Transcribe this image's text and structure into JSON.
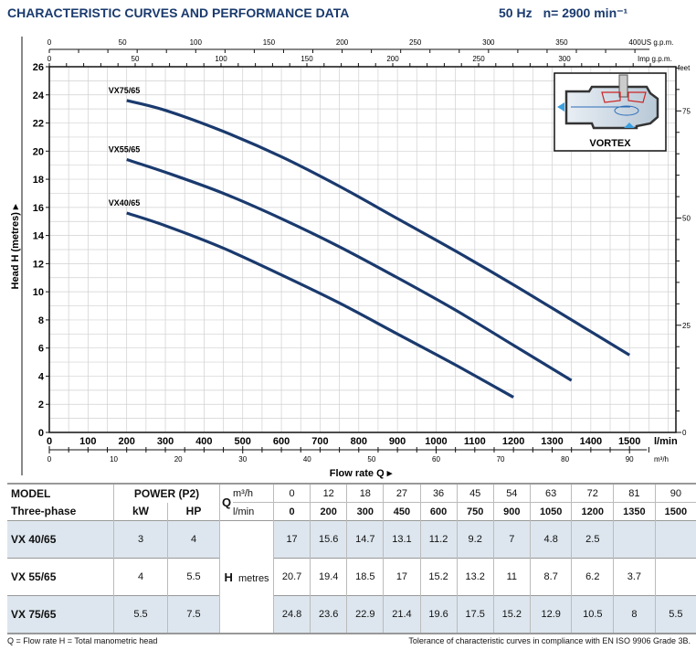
{
  "header": {
    "title": "CHARACTERISTIC CURVES AND PERFORMANCE DATA",
    "frequency": "50 Hz",
    "speed": "n= 2900 min⁻¹"
  },
  "vortex_label": "VORTEX",
  "chart_data": {
    "type": "line",
    "xlabel": "Flow rate Q",
    "ylabel": "Head H (metres)",
    "x_unit": "l/min",
    "xlim": [
      0,
      1620
    ],
    "ylim": [
      0,
      26
    ],
    "x_ticks": [
      0,
      100,
      200,
      300,
      400,
      500,
      600,
      700,
      800,
      900,
      1000,
      1100,
      1200,
      1300,
      1400,
      1500
    ],
    "y_ticks": [
      0,
      2,
      4,
      6,
      8,
      10,
      12,
      14,
      16,
      18,
      20,
      22,
      24,
      26
    ],
    "secondary_axes": {
      "us_gpm": {
        "label": "US g.p.m.",
        "ticks": [
          0,
          50,
          100,
          150,
          200,
          250,
          300,
          350,
          400
        ]
      },
      "imp_gpm": {
        "label": "Imp g.p.m.",
        "ticks": [
          0,
          50,
          100,
          150,
          200,
          250,
          300
        ]
      },
      "feet": {
        "label": "feet",
        "ticks": [
          0,
          25,
          50,
          75
        ]
      },
      "m3h": {
        "label": "m³/h",
        "ticks": [
          0,
          10,
          20,
          30,
          40,
          50,
          60,
          70,
          80,
          90
        ]
      }
    },
    "grid": true,
    "series": [
      {
        "name": "VX75/65",
        "x": [
          200,
          300,
          450,
          600,
          750,
          900,
          1050,
          1200,
          1350,
          1500
        ],
        "y": [
          23.6,
          22.9,
          21.4,
          19.6,
          17.5,
          15.2,
          12.9,
          10.5,
          8,
          5.5
        ]
      },
      {
        "name": "VX55/65",
        "x": [
          200,
          300,
          450,
          600,
          750,
          900,
          1050,
          1200,
          1350
        ],
        "y": [
          19.4,
          18.5,
          17,
          15.2,
          13.2,
          11,
          8.7,
          6.2,
          3.7
        ]
      },
      {
        "name": "VX40/65",
        "x": [
          200,
          300,
          450,
          600,
          750,
          900,
          1050,
          1200
        ],
        "y": [
          15.6,
          14.7,
          13.1,
          11.2,
          9.2,
          7,
          4.8,
          2.5
        ]
      }
    ],
    "colors": {
      "curve": "#1a3a6e",
      "grid": "#d0d0d0",
      "table_shade": "#dde6ee"
    }
  },
  "table": {
    "model_header": "MODEL",
    "phase_header": "Three-phase",
    "power_header": "POWER (P2)",
    "kw": "kW",
    "hp": "HP",
    "q": "Q",
    "q_unit_m3h": "m³/h",
    "q_unit_lmin": "l/min",
    "h": "H",
    "h_unit": "metres",
    "q_m3h": [
      "0",
      "12",
      "18",
      "27",
      "36",
      "45",
      "54",
      "63",
      "72",
      "81",
      "90"
    ],
    "q_lmin": [
      "0",
      "200",
      "300",
      "450",
      "600",
      "750",
      "900",
      "1050",
      "1200",
      "1350",
      "1500"
    ],
    "rows": [
      {
        "model": "VX 40/65",
        "kw": "3",
        "hp": "4",
        "h": [
          "17",
          "15.6",
          "14.7",
          "13.1",
          "11.2",
          "9.2",
          "7",
          "4.8",
          "2.5",
          "",
          ""
        ]
      },
      {
        "model": "VX 55/65",
        "kw": "4",
        "hp": "5.5",
        "h": [
          "20.7",
          "19.4",
          "18.5",
          "17",
          "15.2",
          "13.2",
          "11",
          "8.7",
          "6.2",
          "3.7",
          ""
        ]
      },
      {
        "model": "VX 75/65",
        "kw": "5.5",
        "hp": "7.5",
        "h": [
          "24.8",
          "23.6",
          "22.9",
          "21.4",
          "19.6",
          "17.5",
          "15.2",
          "12.9",
          "10.5",
          "8",
          "5.5"
        ]
      }
    ]
  },
  "footer": {
    "legend": "Q = Flow rate   H = Total manometric head",
    "tolerance": "Tolerance of characteristic curves in compliance with EN ISO 9906 Grade 3B."
  }
}
